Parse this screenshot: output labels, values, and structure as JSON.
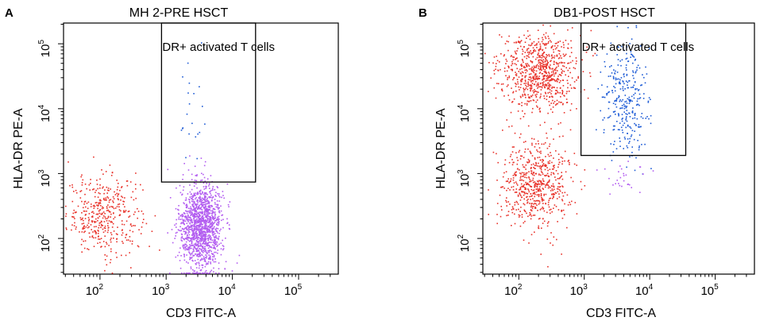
{
  "chart_data": [
    {
      "type": "scatter",
      "panel_label": "A",
      "title": "MH 2-PRE HSCT",
      "xlabel": "CD3 FITC-A",
      "ylabel": "HLA-DR PE-A",
      "x_log_range": [
        1.45,
        5.6
      ],
      "y_log_range": [
        1.45,
        5.32
      ],
      "x_ticks": [
        {
          "exp": 2,
          "label": "10",
          "sup": "2"
        },
        {
          "exp": 3,
          "label": "10",
          "sup": "3"
        },
        {
          "exp": 4,
          "label": "10",
          "sup": "4"
        },
        {
          "exp": 5,
          "label": "10",
          "sup": "5"
        }
      ],
      "y_ticks": [
        {
          "exp": 2,
          "label": "10",
          "sup": "2"
        },
        {
          "exp": 3,
          "label": "10",
          "sup": "3"
        },
        {
          "exp": 4,
          "label": "10",
          "sup": "4"
        },
        {
          "exp": 5,
          "label": "10",
          "sup": "5"
        }
      ],
      "gate": {
        "label": "DR+ activated T cells",
        "x_range": [
          2.93,
          4.35
        ],
        "y_range": [
          2.87,
          5.32
        ]
      },
      "clusters": [
        {
          "name": "red-population",
          "color": "#e8322a",
          "center": [
            2.05,
            2.37
          ],
          "spread": [
            0.28,
            0.3
          ],
          "count": 420
        },
        {
          "name": "purple-population",
          "color": "#b25cf0",
          "center": [
            3.52,
            2.2
          ],
          "spread": [
            0.16,
            0.33
          ],
          "count": 1400
        },
        {
          "name": "blue-activated",
          "color": "#1f5cd6",
          "center": [
            3.4,
            3.8
          ],
          "spread": [
            0.12,
            0.55
          ],
          "count": 22
        }
      ]
    },
    {
      "type": "scatter",
      "panel_label": "B",
      "title": "DB1-POST HSCT",
      "xlabel": "CD3 FITC-A",
      "ylabel": "HLA-DR PE-A",
      "x_log_range": [
        1.45,
        5.6
      ],
      "y_log_range": [
        1.45,
        5.32
      ],
      "x_ticks": [
        {
          "exp": 2,
          "label": "10",
          "sup": "2"
        },
        {
          "exp": 3,
          "label": "10",
          "sup": "3"
        },
        {
          "exp": 4,
          "label": "10",
          "sup": "4"
        },
        {
          "exp": 5,
          "label": "10",
          "sup": "5"
        }
      ],
      "y_ticks": [
        {
          "exp": 2,
          "label": "10",
          "sup": "2"
        },
        {
          "exp": 3,
          "label": "10",
          "sup": "3"
        },
        {
          "exp": 4,
          "label": "10",
          "sup": "4"
        },
        {
          "exp": 5,
          "label": "10",
          "sup": "5"
        }
      ],
      "gate": {
        "label": "DR+ activated T cells",
        "x_range": [
          2.95,
          4.55
        ],
        "y_range": [
          3.28,
          5.32
        ]
      },
      "clusters": [
        {
          "name": "red-high-population",
          "color": "#e8322a",
          "center": [
            2.28,
            4.58
          ],
          "spread": [
            0.3,
            0.3
          ],
          "count": 800
        },
        {
          "name": "red-low-population",
          "color": "#e8322a",
          "center": [
            2.25,
            2.82
          ],
          "spread": [
            0.27,
            0.34
          ],
          "count": 620
        },
        {
          "name": "blue-activated",
          "color": "#1f5cd6",
          "center": [
            3.62,
            4.15
          ],
          "spread": [
            0.17,
            0.45
          ],
          "count": 320
        },
        {
          "name": "purple-population",
          "color": "#b25cf0",
          "center": [
            3.6,
            3.0
          ],
          "spread": [
            0.15,
            0.15
          ],
          "count": 28
        }
      ]
    }
  ]
}
